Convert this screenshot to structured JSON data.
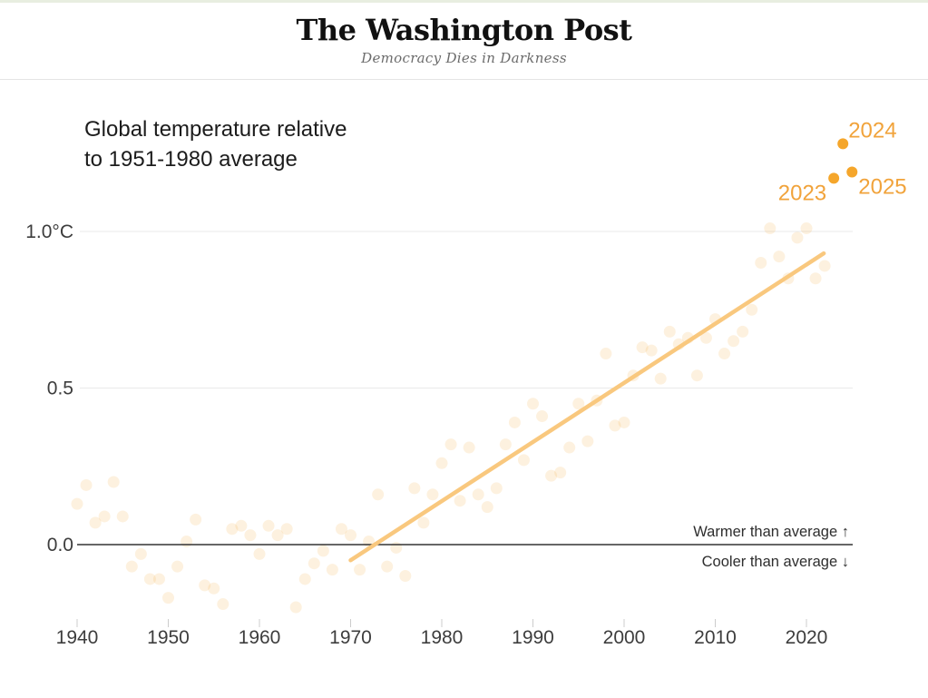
{
  "header": {
    "masthead": "The Washington Post",
    "tagline": "Democracy Dies in Darkness"
  },
  "chart": {
    "title_line1": "Global temperature relative",
    "title_line2": "to 1951-1980 average"
  },
  "chart_data": {
    "type": "scatter",
    "title": "Global temperature relative to 1951-1980 average",
    "xlabel": "",
    "ylabel": "",
    "unit": "°C",
    "xlim": [
      1939,
      2026.5
    ],
    "ylim": [
      -0.35,
      1.45
    ],
    "grid": "horizontal",
    "legend": "none",
    "x_ticks": [
      1940,
      1950,
      1960,
      1970,
      1980,
      1990,
      2000,
      2010,
      2020
    ],
    "y_ticks": [
      {
        "value": 0.0,
        "label": "0.0"
      },
      {
        "value": 0.5,
        "label": "0.5"
      },
      {
        "value": 1.0,
        "label": "1.0°C"
      }
    ],
    "annotations": {
      "warmer": "Warmer than average ↑",
      "cooler": "Cooler than average ↓"
    },
    "series": [
      {
        "name": "annual-temperature-anomaly-1940-2022",
        "color": "#f5a83b",
        "opacity": 0.16,
        "points": [
          [
            1940,
            0.13
          ],
          [
            1941,
            0.19
          ],
          [
            1942,
            0.07
          ],
          [
            1943,
            0.09
          ],
          [
            1944,
            0.2
          ],
          [
            1945,
            0.09
          ],
          [
            1946,
            -0.07
          ],
          [
            1947,
            -0.03
          ],
          [
            1948,
            -0.11
          ],
          [
            1949,
            -0.11
          ],
          [
            1950,
            -0.17
          ],
          [
            1951,
            -0.07
          ],
          [
            1952,
            0.01
          ],
          [
            1953,
            0.08
          ],
          [
            1954,
            -0.13
          ],
          [
            1955,
            -0.14
          ],
          [
            1956,
            -0.19
          ],
          [
            1957,
            0.05
          ],
          [
            1958,
            0.06
          ],
          [
            1959,
            0.03
          ],
          [
            1960,
            -0.03
          ],
          [
            1961,
            0.06
          ],
          [
            1962,
            0.03
          ],
          [
            1963,
            0.05
          ],
          [
            1964,
            -0.2
          ],
          [
            1965,
            -0.11
          ],
          [
            1966,
            -0.06
          ],
          [
            1967,
            -0.02
          ],
          [
            1968,
            -0.08
          ],
          [
            1969,
            0.05
          ],
          [
            1970,
            0.03
          ],
          [
            1971,
            -0.08
          ],
          [
            1972,
            0.01
          ],
          [
            1973,
            0.16
          ],
          [
            1974,
            -0.07
          ],
          [
            1975,
            -0.01
          ],
          [
            1976,
            -0.1
          ],
          [
            1977,
            0.18
          ],
          [
            1978,
            0.07
          ],
          [
            1979,
            0.16
          ],
          [
            1980,
            0.26
          ],
          [
            1981,
            0.32
          ],
          [
            1982,
            0.14
          ],
          [
            1983,
            0.31
          ],
          [
            1984,
            0.16
          ],
          [
            1985,
            0.12
          ],
          [
            1986,
            0.18
          ],
          [
            1987,
            0.32
          ],
          [
            1988,
            0.39
          ],
          [
            1989,
            0.27
          ],
          [
            1990,
            0.45
          ],
          [
            1991,
            0.41
          ],
          [
            1992,
            0.22
          ],
          [
            1993,
            0.23
          ],
          [
            1994,
            0.31
          ],
          [
            1995,
            0.45
          ],
          [
            1996,
            0.33
          ],
          [
            1997,
            0.46
          ],
          [
            1998,
            0.61
          ],
          [
            1999,
            0.38
          ],
          [
            2000,
            0.39
          ],
          [
            2001,
            0.54
          ],
          [
            2002,
            0.63
          ],
          [
            2003,
            0.62
          ],
          [
            2004,
            0.53
          ],
          [
            2005,
            0.68
          ],
          [
            2006,
            0.64
          ],
          [
            2007,
            0.66
          ],
          [
            2008,
            0.54
          ],
          [
            2009,
            0.66
          ],
          [
            2010,
            0.72
          ],
          [
            2011,
            0.61
          ],
          [
            2012,
            0.65
          ],
          [
            2013,
            0.68
          ],
          [
            2014,
            0.75
          ],
          [
            2015,
            0.9
          ],
          [
            2016,
            1.01
          ],
          [
            2017,
            0.92
          ],
          [
            2018,
            0.85
          ],
          [
            2019,
            0.98
          ],
          [
            2020,
            1.01
          ],
          [
            2021,
            0.85
          ],
          [
            2022,
            0.89
          ]
        ]
      }
    ],
    "highlight_points": [
      {
        "year": 2023,
        "value": 1.17,
        "label": "2023",
        "label_side": "left"
      },
      {
        "year": 2024,
        "value": 1.28,
        "label": "2024",
        "label_side": "upper-right"
      },
      {
        "year": 2025,
        "value": 1.19,
        "label": "2025",
        "label_side": "right"
      }
    ],
    "trend_line": {
      "x1": 1970,
      "y1": -0.05,
      "x2": 2021.9,
      "y2": 0.93
    },
    "colors": {
      "highlight": "#f5a62b",
      "highlight_label": "#f1a33b",
      "faint_dot": "#f5a83b",
      "trend": "#f9c87e",
      "zero_line": "#333333",
      "grid": "#e9e9e9",
      "tick": "#cccccc",
      "tick_label": "#3d3d3d"
    }
  }
}
